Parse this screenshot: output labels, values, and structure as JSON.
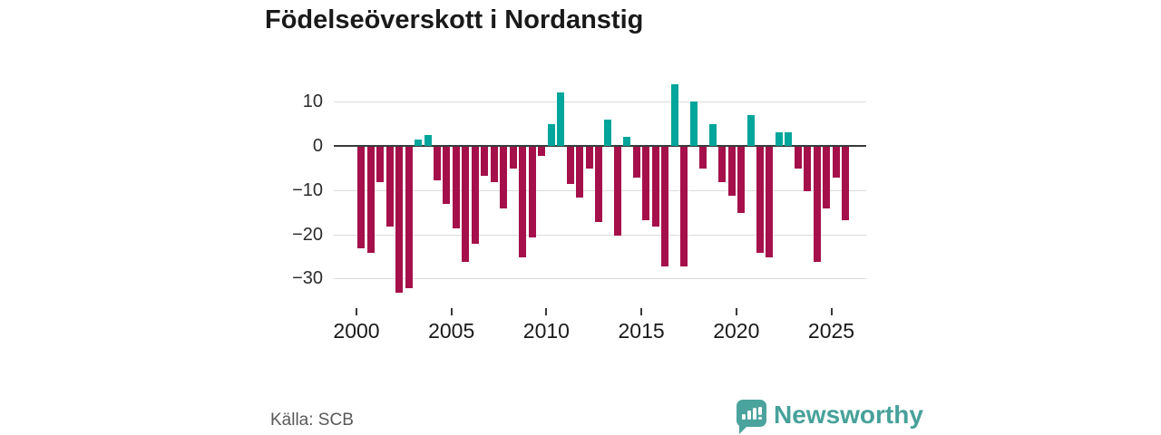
{
  "title": "Födelseöverskott i Nordanstig",
  "source": {
    "label": "Källa: SCB"
  },
  "branding": {
    "name": "Newsworthy",
    "icon": "bar-chart-speech-bubble-icon",
    "icon_color": "#4BA39D",
    "text_color": "#47A19A"
  },
  "colors": {
    "background": "#FFFFFF",
    "title_text": "#1A1A1A",
    "bar_negative": "#A5104A",
    "bar_positive": "#00A59B",
    "gridline": "#DCDCDC",
    "zero_line": "#3A3A3A",
    "axis_text": "#2B2B2B",
    "source_text": "#595959"
  },
  "chart_data": {
    "type": "bar",
    "title": "Födelseöverskott i Nordanstig",
    "xlabel": "",
    "ylabel": "",
    "grid": true,
    "legend": "none",
    "ylim": [
      -35,
      15
    ],
    "y_ticks": [
      10,
      0,
      -10,
      -20,
      -30
    ],
    "y_tick_labels": [
      "10",
      "0",
      "−10",
      "−20",
      "−30"
    ],
    "x_ticks": [
      2000,
      2005,
      2010,
      2015,
      2020,
      2025
    ],
    "x_tick_labels": [
      "2000",
      "2005",
      "2010",
      "2015",
      "2020",
      "2025"
    ],
    "color_rule": "negative values crimson, positive values teal",
    "categories": [
      "2000 H1",
      "2000 H2",
      "2001 H1",
      "2001 H2",
      "2002 H1",
      "2002 H2",
      "2003 H1",
      "2003 H2",
      "2004 H1",
      "2004 H2",
      "2005 H1",
      "2005 H2",
      "2006 H1",
      "2006 H2",
      "2007 H1",
      "2007 H2",
      "2008 H1",
      "2008 H2",
      "2009 H1",
      "2009 H2",
      "2010 H1",
      "2010 H2",
      "2011 H1",
      "2011 H2",
      "2012 H1",
      "2012 H2",
      "2013 H1",
      "2013 H2",
      "2014 H1",
      "2014 H2",
      "2015 H1",
      "2015 H2",
      "2016 H1",
      "2016 H2",
      "2017 H1",
      "2017 H2",
      "2018 H1",
      "2018 H2",
      "2019 H1",
      "2019 H2",
      "2020 H1",
      "2020 H2",
      "2021 H1",
      "2021 H2",
      "2022 H1",
      "2022 H2",
      "2023 H1",
      "2023 H2",
      "2024 H1",
      "2024 H2",
      "2025 H1",
      "2025 H2"
    ],
    "values": [
      -23,
      -24,
      -8,
      -18,
      -33,
      -32,
      1.5,
      2.5,
      -7.5,
      -13,
      -18.5,
      -26,
      -22,
      -6.5,
      -8,
      -14,
      -5,
      -25,
      -20.5,
      -2,
      5,
      12,
      -8.5,
      -11.5,
      -5,
      -17,
      6,
      -20,
      2,
      -7,
      -16.5,
      -18,
      -27,
      14,
      -27,
      10,
      -5,
      5,
      -8,
      -11,
      -15,
      7,
      -24,
      -25,
      3,
      3,
      -5,
      -10,
      -26,
      -14,
      -7,
      -16.5
    ]
  }
}
